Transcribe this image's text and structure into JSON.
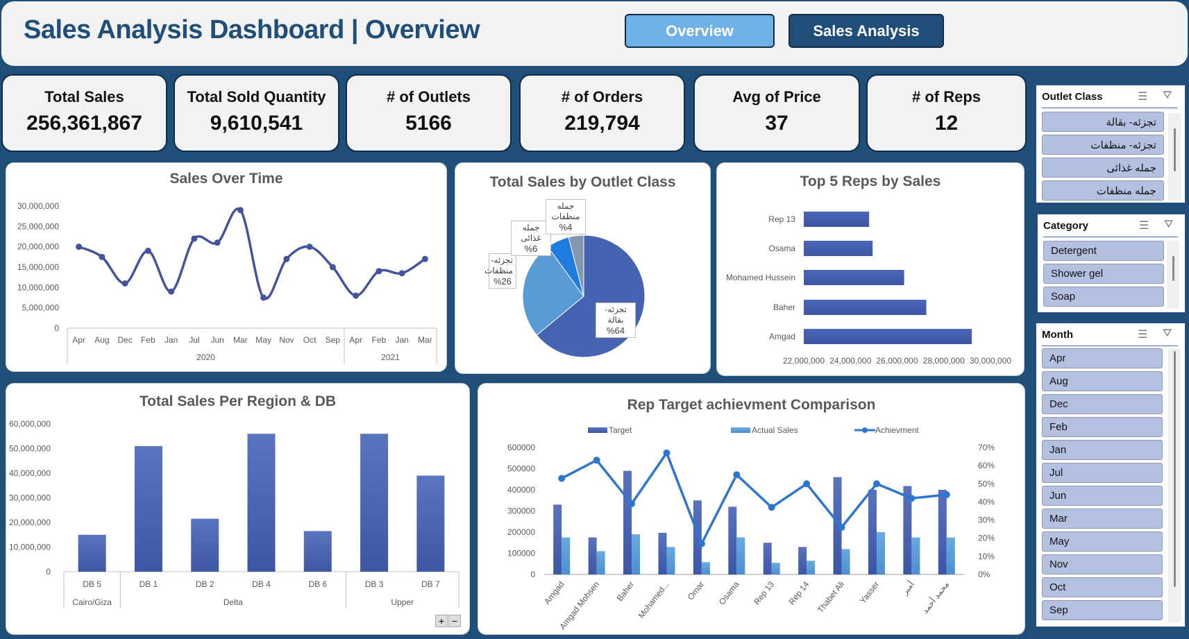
{
  "header": {
    "title": "Sales Analysis Dashboard | Overview",
    "buttons": [
      {
        "label": "Overview",
        "active": true
      },
      {
        "label": "Sales Analysis",
        "active": false
      }
    ]
  },
  "colors": {
    "background": "#1f4e79",
    "title": "#1f4e79",
    "overview_button": "#6fb1e4",
    "sales_button": "#1f4e79",
    "bar_dark": "#4563b0",
    "bar_light": "#5b9bd5",
    "line": "#2e75d0",
    "slicer_item": "#b4c0e0"
  },
  "kpis": [
    {
      "label": "Total Sales",
      "value": "256,361,867"
    },
    {
      "label": "Total Sold Quantity",
      "value": "9,610,541"
    },
    {
      "label": "# of Outlets",
      "value": "5166"
    },
    {
      "label": "# of Orders",
      "value": "219,794"
    },
    {
      "label": "Avg of Price",
      "value": "37"
    },
    {
      "label": "# of Reps",
      "value": "12"
    }
  ],
  "chart_data": [
    {
      "id": "sales_over_time",
      "type": "line",
      "title": "Sales Over Time",
      "categories": [
        "Apr",
        "Aug",
        "Dec",
        "Feb",
        "Jan",
        "Jul",
        "Jun",
        "Mar",
        "May",
        "Nov",
        "Oct",
        "Sep",
        "Apr",
        "Feb",
        "Jan",
        "Mar"
      ],
      "groups": [
        {
          "label": "2020",
          "count": 12
        },
        {
          "label": "2021",
          "count": 4
        }
      ],
      "values": [
        20000000,
        17500000,
        11000000,
        19000000,
        9000000,
        22000000,
        21000000,
        29000000,
        7500000,
        17000000,
        20000000,
        15000000,
        8000000,
        14000000,
        13500000,
        17000000
      ],
      "ylim": [
        0,
        30000000
      ],
      "yticks": [
        "0",
        "5,000,000",
        "10,000,000",
        "15,000,000",
        "20,000,000",
        "25,000,000",
        "30,000,000"
      ]
    },
    {
      "id": "sales_by_outlet_class",
      "type": "pie",
      "title": "Total Sales by Outlet Class",
      "slices": [
        {
          "label": "تجزئه- بقالة",
          "value": 64,
          "text": "%64",
          "color": "#4563b0"
        },
        {
          "label": "تجزئه- منظفات",
          "value": 26,
          "text": "%26",
          "color": "#5b9bd5"
        },
        {
          "label": "جمله غذائى",
          "value": 6,
          "text": "%6",
          "color": "#1f7be0"
        },
        {
          "label": "جمله منظفات",
          "value": 4,
          "text": "%4",
          "color": "#8497b0"
        }
      ]
    },
    {
      "id": "top5_reps",
      "type": "bar",
      "orientation": "horizontal",
      "title": "Top 5 Reps by Sales",
      "categories": [
        "Rep 13",
        "Osama",
        "Mohamed Hussein",
        "Baher",
        "Amgad"
      ],
      "values": [
        24800000,
        24950000,
        26300000,
        27250000,
        29200000
      ],
      "xlim": [
        22000000,
        30000000
      ],
      "xticks": [
        "22,000,000",
        "24,000,000",
        "26,000,000",
        "28,000,000",
        "30,000,000"
      ]
    },
    {
      "id": "sales_region_db",
      "type": "bar",
      "title": "Total Sales Per Region & DB",
      "categories": [
        "DB 5",
        "DB 1",
        "DB 2",
        "DB 4",
        "DB 6",
        "DB 3",
        "DB 7"
      ],
      "groups": [
        {
          "label": "Cairo/Giza",
          "count": 1
        },
        {
          "label": "Delta",
          "count": 4
        },
        {
          "label": "Upper",
          "count": 2
        }
      ],
      "values": [
        15000000,
        51000000,
        21500000,
        56000000,
        16500000,
        56000000,
        39000000
      ],
      "ylim": [
        0,
        60000000
      ],
      "yticks": [
        "0",
        "10,000,000",
        "20,000,000",
        "30,000,000",
        "40,000,000",
        "50,000,000",
        "60,000,000"
      ]
    },
    {
      "id": "rep_target",
      "type": "bar",
      "title": "Rep Target achievment Comparison",
      "categories": [
        "Amgad",
        "Amgad Mohsen",
        "Baher",
        "Mohamed...",
        "Omar",
        "Osama",
        "Rep 13",
        "Rep 14",
        "Thabet Ali",
        "Yasser",
        "أمير",
        "محمد أحمد"
      ],
      "series": [
        {
          "name": "Target",
          "values": [
            330000,
            175000,
            490000,
            197000,
            350000,
            320000,
            150000,
            130000,
            460000,
            400000,
            418000,
            400000
          ]
        },
        {
          "name": "Actual Sales",
          "values": [
            175000,
            110000,
            190000,
            130000,
            58000,
            175000,
            55000,
            65000,
            120000,
            200000,
            175000,
            175000
          ]
        },
        {
          "name": "Achievment",
          "axis": "right",
          "values": [
            53,
            63,
            39,
            67,
            17,
            55,
            37,
            50,
            26,
            50,
            42,
            44
          ]
        }
      ],
      "ylim": [
        0,
        600000
      ],
      "yticks": [
        "0",
        "100000",
        "200000",
        "300000",
        "400000",
        "500000",
        "600000"
      ],
      "y2lim": [
        0,
        70
      ],
      "y2ticks": [
        "0%",
        "10%",
        "20%",
        "30%",
        "40%",
        "50%",
        "60%",
        "70%"
      ],
      "legend": "top"
    }
  ],
  "slicers": [
    {
      "title": "Outlet Class",
      "items": [
        "تجزئه- بقالة",
        "تجزئه- منظفات",
        "جمله غذائى",
        "جمله منظفات"
      ]
    },
    {
      "title": "Category",
      "items": [
        "Detergent",
        "Shower gel",
        "Soap"
      ]
    },
    {
      "title": "Month",
      "items": [
        "Apr",
        "Aug",
        "Dec",
        "Feb",
        "Jan",
        "Jul",
        "Jun",
        "Mar",
        "May",
        "Nov",
        "Oct",
        "Sep"
      ]
    }
  ],
  "zoom_controls": {
    "plus": "+",
    "minus": "−"
  }
}
